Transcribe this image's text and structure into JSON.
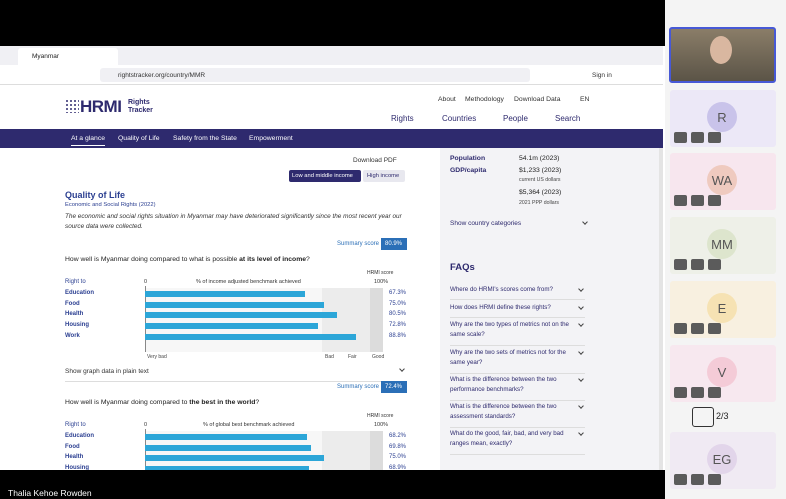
{
  "meeting": {
    "participant_name": "Thalia Kehoe Rowden",
    "tiles": [
      "R",
      "WA",
      "MM",
      "E",
      "V",
      "EG"
    ],
    "pager": "2/3"
  },
  "browser": {
    "tab": "Myanmar",
    "url": "rightstracker.org/country/MMR",
    "sign_in": "Sign in"
  },
  "site": {
    "logo": "HRMI",
    "logo_sub": [
      "Rights",
      "Tracker"
    ],
    "top_links": [
      "About",
      "Methodology",
      "Download Data",
      "EN"
    ],
    "main_links": [
      "Rights",
      "Countries",
      "People",
      "Search"
    ],
    "tabs": [
      "At a glance",
      "Quality of Life",
      "Safety from the State",
      "Empowerment"
    ]
  },
  "left": {
    "download_pdf": "Download PDF",
    "toggle": [
      "Low and middle income",
      "High income"
    ],
    "section_title": "Quality of Life",
    "section_sub": "Economic and Social Rights (2022)",
    "note": "The economic and social rights situation in Myanmar may have deteriorated significantly since the most recent year our source data were collected.",
    "plain_text": "Show graph data in plain text",
    "charts": [
      {
        "summary_label": "Summary score",
        "summary": "80.9%",
        "question": [
          "How well is Myanmar doing compared to what is possible ",
          "at its level of income",
          "?"
        ],
        "right_to": "Right to",
        "axis_start": "0",
        "axis_title": "% of income adjusted benchmark achieved",
        "score_head": "HRMI score",
        "axis_end": "100%",
        "bands": [
          "Very bad",
          "Bad",
          "Fair",
          "Good"
        ],
        "rows": [
          {
            "label": "Education",
            "value": 67.3,
            "value_label": "67.3%"
          },
          {
            "label": "Food",
            "value": 75.0,
            "value_label": "75.0%"
          },
          {
            "label": "Health",
            "value": 80.5,
            "value_label": "80.5%"
          },
          {
            "label": "Housing",
            "value": 72.8,
            "value_label": "72.8%"
          },
          {
            "label": "Work",
            "value": 88.8,
            "value_label": "88.8%"
          }
        ]
      },
      {
        "summary_label": "Summary score",
        "summary": "72.4%",
        "question": [
          "How well is Myanmar doing compared to ",
          "the best in the world",
          "?"
        ],
        "right_to": "Right to",
        "axis_start": "0",
        "axis_title": "% of global best benchmark achieved",
        "score_head": "HRMI score",
        "axis_end": "100%",
        "rows": [
          {
            "label": "Education",
            "value": 68.2,
            "value_label": "68.2%"
          },
          {
            "label": "Food",
            "value": 69.8,
            "value_label": "69.8%"
          },
          {
            "label": "Health",
            "value": 75.0,
            "value_label": "75.0%"
          },
          {
            "label": "Housing",
            "value": 68.9,
            "value_label": "68.9%"
          }
        ]
      }
    ]
  },
  "right": {
    "population_label": "Population",
    "population": "54.1m (2023)",
    "gdp_label": "GDP/capita",
    "gdp_usd": "$1,233 (2023)",
    "gdp_usd_unit": "current US dollars",
    "gdp_ppp": "$5,364 (2023)",
    "gdp_ppp_unit": "2021 PPP dollars",
    "categories": "Show country categories",
    "faq_title": "FAQs",
    "faqs": [
      "Where do HRMI's scores come from?",
      "How does HRMI define these rights?",
      "Why are the two types of metrics not on the same scale?",
      "Why are the two sets of metrics not for the same year?",
      "What is the difference between the two performance benchmarks?",
      "What is the difference between the two assessment standards?",
      "What do the good, fair, bad, and very bad ranges mean, exactly?"
    ]
  }
}
